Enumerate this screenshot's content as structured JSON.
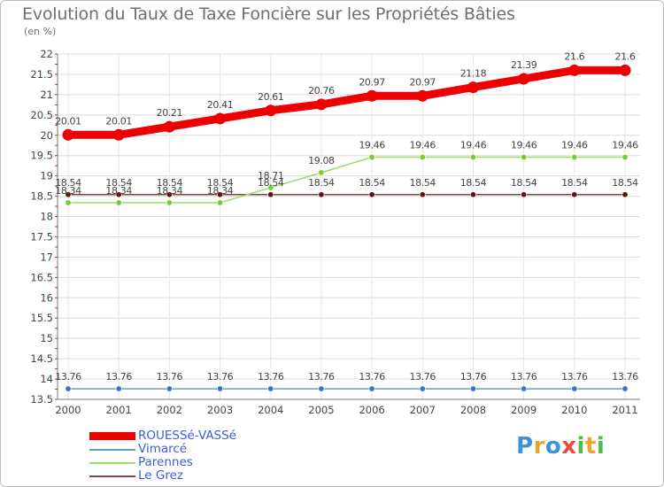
{
  "title": "Evolution du Taux de Taxe Foncière sur les Propriétés Bâties",
  "unit_label": "(en %)",
  "logo": {
    "letters": [
      "P",
      "r",
      "o",
      "x",
      "i",
      "t",
      "i"
    ],
    "colors": [
      "#3e93d4",
      "#e8a331",
      "#3e93d4",
      "#e84a3e",
      "#58b84c",
      "#e8a331",
      "#58b84c"
    ]
  },
  "chart_data": {
    "type": "line",
    "title": "Evolution du Taux de Taxe Foncière sur les Propriétés Bâties",
    "ylabel": "(en %)",
    "xlabel": "",
    "ylim": [
      13.5,
      22
    ],
    "yticks": [
      "13.5",
      "14",
      "14.5",
      "15",
      "15.5",
      "16",
      "16.5",
      "17",
      "17.5",
      "18",
      "18.5",
      "19",
      "19.5",
      "20",
      "20.5",
      "21",
      "21.5",
      "22"
    ],
    "x": [
      "2000",
      "2001",
      "2002",
      "2003",
      "2004",
      "2005",
      "2006",
      "2007",
      "2008",
      "2009",
      "2010",
      "2011"
    ],
    "series": [
      {
        "name": "ROUESSé-VASSé",
        "color": "#ee0000",
        "width": 9,
        "values": [
          20.01,
          20.01,
          20.21,
          20.41,
          20.61,
          20.76,
          20.97,
          20.97,
          21.18,
          21.39,
          21.6,
          21.6
        ],
        "labels": [
          "20.01",
          "20.01",
          "20.21",
          "20.41",
          "20.61",
          "20.76",
          "20.97",
          "20.97",
          "21.18",
          "21.39",
          "21.6",
          "21.6"
        ]
      },
      {
        "name": "Vimarcé",
        "color": "#6699cc",
        "dot": "#3a78c4",
        "width": 1.5,
        "values": [
          13.76,
          13.76,
          13.76,
          13.76,
          13.76,
          13.76,
          13.76,
          13.76,
          13.76,
          13.76,
          13.76,
          13.76
        ],
        "labels": [
          "13.76",
          "13.76",
          "13.76",
          "13.76",
          "13.76",
          "13.76",
          "13.76",
          "13.76",
          "13.76",
          "13.76",
          "13.76",
          "13.76"
        ]
      },
      {
        "name": "Parennes",
        "color": "#99dd66",
        "dot": "#77cc33",
        "width": 1.5,
        "values": [
          18.34,
          18.34,
          18.34,
          18.34,
          18.71,
          19.08,
          19.46,
          19.46,
          19.46,
          19.46,
          19.46,
          19.46
        ],
        "labels": [
          "18.34",
          "18.34",
          "18.34",
          "18.34",
          "18.71",
          "19.08",
          "19.46",
          "19.46",
          "19.46",
          "19.46",
          "19.46",
          "19.46"
        ]
      },
      {
        "name": "Le Grez",
        "color": "#884444",
        "dot": "#661111",
        "width": 1.5,
        "values": [
          18.54,
          18.54,
          18.54,
          18.54,
          18.54,
          18.54,
          18.54,
          18.54,
          18.54,
          18.54,
          18.54,
          18.54
        ],
        "labels": [
          "18.54",
          "18.54",
          "18.54",
          "18.54",
          "18.54",
          "18.54",
          "18.54",
          "18.54",
          "18.54",
          "18.54",
          "18.54",
          "18.54"
        ]
      }
    ]
  }
}
